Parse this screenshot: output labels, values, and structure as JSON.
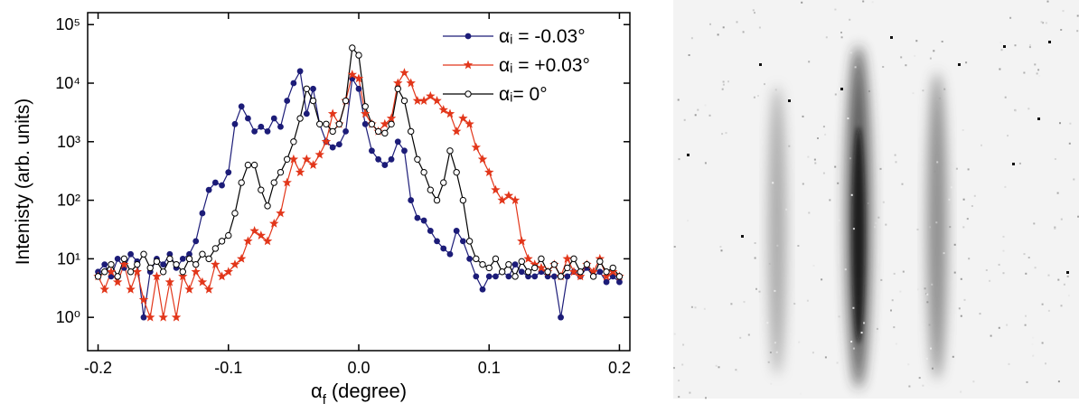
{
  "chart_data": {
    "type": "line",
    "ylabel": "Intenisty (arb. units)",
    "xlabel": {
      "symbol": "α",
      "subscript": "f",
      "text": "(degree)"
    },
    "yscale": "log",
    "xlim": [
      -0.208,
      0.208
    ],
    "ylim": [
      0.27,
      160000
    ],
    "xticks": [
      -0.2,
      -0.1,
      {
        "value": 0,
        "label": "0.0"
      },
      0.1,
      0.2
    ],
    "yticks": [
      {
        "value": 1,
        "label": "10⁰"
      },
      {
        "value": 10,
        "label": "10¹"
      },
      {
        "value": 100,
        "label": "10²"
      },
      {
        "value": 1000,
        "label": "10³"
      },
      {
        "value": 10000,
        "label": "10⁴"
      },
      {
        "value": 100000,
        "label": "10⁵"
      }
    ],
    "legend": "upper right",
    "x": [
      -0.2,
      -0.195,
      -0.19,
      -0.185,
      -0.18,
      -0.175,
      -0.17,
      -0.165,
      -0.16,
      -0.155,
      -0.15,
      -0.145,
      -0.14,
      -0.135,
      -0.13,
      -0.125,
      -0.12,
      -0.115,
      -0.11,
      -0.105,
      -0.1,
      -0.095,
      -0.09,
      -0.085,
      -0.08,
      -0.075,
      -0.07,
      -0.065,
      -0.06,
      -0.055,
      -0.05,
      -0.045,
      -0.04,
      -0.035,
      -0.03,
      -0.025,
      -0.02,
      -0.015,
      -0.01,
      -0.005,
      0,
      0.005,
      0.01,
      0.015,
      0.02,
      0.025,
      0.03,
      0.035,
      0.04,
      0.045,
      0.05,
      0.055,
      0.06,
      0.065,
      0.07,
      0.075,
      0.08,
      0.085,
      0.09,
      0.095,
      0.1,
      0.105,
      0.11,
      0.115,
      0.12,
      0.125,
      0.13,
      0.135,
      0.14,
      0.145,
      0.15,
      0.155,
      0.16,
      0.165,
      0.17,
      0.175,
      0.18,
      0.185,
      0.19,
      0.195,
      0.2
    ],
    "series": [
      {
        "name": "αᵢ = -0.03°",
        "color": "#1c1c78",
        "marker": "filled-circle",
        "values": [
          6,
          8,
          5,
          10,
          7,
          12,
          9,
          1,
          6,
          10,
          8,
          12,
          7,
          10,
          12,
          20,
          60,
          150,
          200,
          180,
          300,
          2000,
          4000,
          2500,
          1500,
          1800,
          1500,
          2500,
          1800,
          5000,
          10000,
          16000,
          3000,
          8000,
          2000,
          1000,
          800,
          900,
          1500,
          12000,
          8000,
          2000,
          700,
          500,
          400,
          500,
          1000,
          700,
          100,
          50,
          45,
          30,
          20,
          15,
          12,
          30,
          20,
          10,
          5,
          3,
          5,
          5,
          6,
          5,
          8,
          6,
          5,
          5,
          6,
          5,
          5,
          1,
          5,
          6,
          5,
          7,
          5,
          6,
          4,
          5,
          4
        ]
      },
      {
        "name": "αᵢ = +0.03°",
        "color": "#e2361a",
        "marker": "star",
        "values": [
          5,
          3,
          6,
          4,
          8,
          3,
          6,
          2,
          1,
          5,
          1,
          4,
          1,
          5,
          3,
          6,
          4,
          3,
          8,
          5,
          6,
          8,
          10,
          20,
          30,
          25,
          20,
          40,
          60,
          200,
          500,
          300,
          500,
          400,
          600,
          1000,
          3000,
          2000,
          5000,
          14000,
          12000,
          3000,
          2000,
          1500,
          2000,
          2500,
          10000,
          15000,
          10000,
          5000,
          5000,
          6000,
          5000,
          3500,
          3000,
          1500,
          2500,
          2000,
          800,
          500,
          300,
          150,
          100,
          120,
          100,
          20,
          10,
          8,
          7,
          6,
          8,
          5,
          10,
          6,
          5,
          8,
          6,
          10,
          5,
          6,
          5
        ]
      },
      {
        "name": "αᵢ= 0°",
        "color": "#000000",
        "marker": "open-circle",
        "values": [
          5,
          6,
          8,
          5,
          10,
          6,
          8,
          12,
          7,
          9,
          6,
          10,
          8,
          6,
          10,
          8,
          12,
          10,
          15,
          20,
          25,
          60,
          200,
          400,
          400,
          150,
          80,
          200,
          300,
          500,
          1000,
          2500,
          8000,
          5000,
          2000,
          2000,
          1500,
          2000,
          5000,
          40000,
          30000,
          4000,
          2000,
          1500,
          1400,
          2000,
          8000,
          5000,
          1500,
          500,
          300,
          150,
          100,
          200,
          700,
          300,
          100,
          20,
          10,
          8,
          7,
          10,
          6,
          8,
          5,
          9,
          6,
          7,
          10,
          6,
          8,
          5,
          7,
          10,
          6,
          8,
          5,
          9,
          6,
          7,
          5
        ]
      }
    ]
  }
}
